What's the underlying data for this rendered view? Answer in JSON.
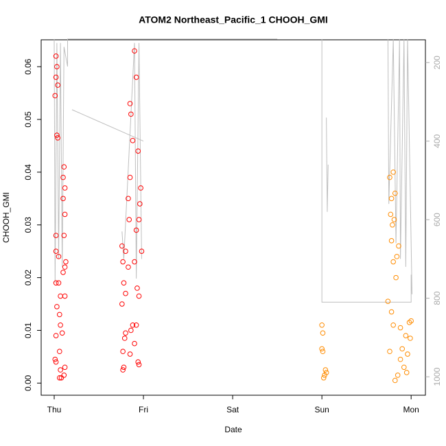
{
  "chart_data": {
    "type": "scatter",
    "title": "ATOM2 Northeast_Pacific_1 CHOOH_GMI",
    "xlabel": "Date",
    "ylabel": "CHOOH_GMI",
    "xlim": [
      -0.146,
      4.16
    ],
    "xticks": [
      {
        "value": 0,
        "label": "Thu"
      },
      {
        "value": 1,
        "label": "Fri"
      },
      {
        "value": 2,
        "label": "Sat"
      },
      {
        "value": 3,
        "label": "Sun"
      },
      {
        "value": 4,
        "label": "Mon"
      }
    ],
    "ylim": [
      -0.0023,
      0.0651
    ],
    "yticks": [
      {
        "value": 0,
        "label": "0.00"
      },
      {
        "value": 0.01,
        "label": "0.01"
      },
      {
        "value": 0.02,
        "label": "0.02"
      },
      {
        "value": 0.03,
        "label": "0.03"
      },
      {
        "value": 0.04,
        "label": "0.04"
      },
      {
        "value": 0.05,
        "label": "0.05"
      },
      {
        "value": 0.06,
        "label": "0.06"
      }
    ],
    "y2lim": [
      1047,
      142
    ],
    "y2ticks": [
      200,
      400,
      600,
      800,
      1000
    ],
    "series": [
      {
        "color": "#bebebe",
        "axis": "y2",
        "kind": "line",
        "x": [
          0.0,
          0.01,
          0.03,
          0.05,
          0.07,
          0.09,
          0.11,
          0.15,
          0.15,
          2.5,
          null,
          0.2,
          1.0,
          null,
          0.76,
          0.78,
          0.9,
          0.92,
          0.95,
          0.98,
          null,
          3.05,
          3.06,
          3.07,
          null,
          3.0,
          3.0,
          4.0,
          4.0,
          4.01,
          3.96,
          3.94,
          3.92,
          3.88,
          3.87,
          3.83,
          3.8,
          3.75,
          3.74
        ],
        "values": [
          140,
          760,
          150,
          700,
          150,
          720,
          160,
          210,
          140,
          140,
          null,
          320,
          400,
          null,
          630,
          700,
          150,
          750,
          150,
          700,
          null,
          340,
          580,
          460,
          null,
          140,
          810,
          810,
          740,
          790,
          140,
          720,
          140,
          700,
          140,
          660,
          140,
          560,
          140
        ]
      },
      {
        "color": "#ff0000",
        "kind": "points",
        "x": [
          0.02,
          0.03,
          0.02,
          0.04,
          0.01,
          0.03,
          0.04,
          0.11,
          0.1,
          0.12,
          0.1,
          0.12,
          0.11,
          0.02,
          0.02,
          0.05,
          0.12,
          0.13,
          0.1,
          0.02,
          0.05,
          0.07,
          0.12,
          0.03,
          0.06,
          0.07,
          0.09,
          0.02,
          0.06,
          0.01,
          0.02,
          0.12,
          0.07,
          0.06,
          0.08,
          0.11,
          0.85,
          0.86,
          0.92,
          0.9,
          0.88,
          0.94,
          0.85,
          0.97,
          0.83,
          0.96,
          0.95,
          0.84,
          0.92,
          0.76,
          0.8,
          0.98,
          0.77,
          0.83,
          0.9,
          0.78,
          0.93,
          0.8,
          0.95,
          0.76,
          0.88,
          0.92,
          0.8,
          0.79,
          0.86,
          0.9,
          0.77,
          0.85,
          0.94,
          0.78,
          0.77,
          0.95
        ],
        "values": [
          0.062,
          0.06,
          0.058,
          0.0565,
          0.0545,
          0.047,
          0.0465,
          0.041,
          0.039,
          0.037,
          0.035,
          0.032,
          0.028,
          0.028,
          0.025,
          0.024,
          0.022,
          0.023,
          0.021,
          0.019,
          0.019,
          0.0165,
          0.0165,
          0.0145,
          0.013,
          0.011,
          0.0095,
          0.009,
          0.006,
          0.0045,
          0.004,
          0.003,
          0.0025,
          0.001,
          0.001,
          0.0015,
          0.053,
          0.051,
          0.058,
          0.063,
          0.046,
          0.044,
          0.039,
          0.037,
          0.035,
          0.034,
          0.031,
          0.031,
          0.029,
          0.026,
          0.025,
          0.025,
          0.023,
          0.022,
          0.023,
          0.019,
          0.018,
          0.017,
          0.0165,
          0.015,
          0.011,
          0.011,
          0.0095,
          0.0085,
          0.01,
          0.0075,
          0.006,
          0.0055,
          0.004,
          0.003,
          0.0025,
          0.0035
        ]
      },
      {
        "color": "#ff8c00",
        "kind": "points",
        "x": [
          3.0,
          3.01,
          3.0,
          3.01,
          3.04,
          3.03,
          3.02,
          3.05,
          3.76,
          3.8,
          3.78,
          3.82,
          3.77,
          3.79,
          3.81,
          3.78,
          3.86,
          3.84,
          3.8,
          3.83,
          3.74,
          3.78,
          3.8,
          3.88,
          3.98,
          4.0,
          3.94,
          3.76,
          3.9,
          3.96,
          3.88,
          3.92,
          3.85,
          3.82,
          3.95,
          3.99
        ],
        "values": [
          0.011,
          0.0095,
          0.0065,
          0.006,
          0.0025,
          0.0015,
          0.001,
          0.002,
          0.039,
          0.04,
          0.035,
          0.036,
          0.032,
          0.03,
          0.031,
          0.027,
          0.026,
          0.024,
          0.023,
          0.02,
          0.0155,
          0.0135,
          0.011,
          0.0105,
          0.0115,
          0.0118,
          0.009,
          0.006,
          0.0065,
          0.0055,
          0.0045,
          0.003,
          0.0015,
          0.0005,
          0.002,
          0.0085
        ]
      }
    ]
  }
}
